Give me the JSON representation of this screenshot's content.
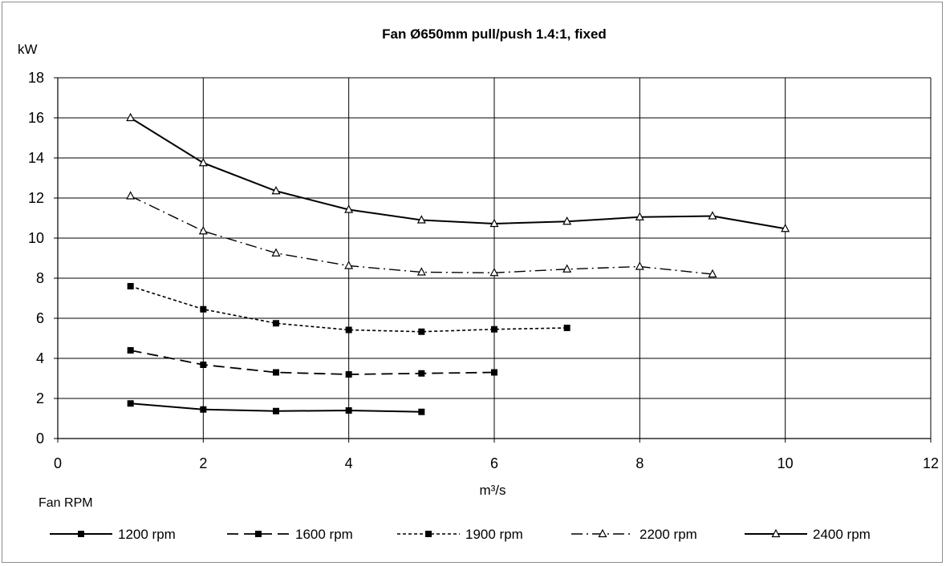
{
  "chart_data": {
    "type": "line",
    "title": "Fan Ø650mm pull/push 1.4:1, fixed",
    "xlabel": "m³/s",
    "ylabel": "kW",
    "xlim": [
      0,
      12
    ],
    "ylim": [
      0,
      18
    ],
    "xticks": [
      0,
      2,
      4,
      6,
      8,
      10,
      12
    ],
    "yticks": [
      0,
      2,
      4,
      6,
      8,
      10,
      12,
      14,
      16,
      18
    ],
    "grid": true,
    "legend_title": "Fan RPM",
    "legend_position": "bottom",
    "series": [
      {
        "name": "1200 rpm",
        "marker": "square",
        "dash": "solid",
        "x": [
          1,
          2,
          3,
          4,
          5
        ],
        "y": [
          1.75,
          1.45,
          1.37,
          1.4,
          1.33
        ]
      },
      {
        "name": "1600 rpm",
        "marker": "square",
        "dash": "long-dash",
        "x": [
          1,
          2,
          3,
          4,
          5,
          6
        ],
        "y": [
          4.4,
          3.68,
          3.3,
          3.2,
          3.25,
          3.3
        ]
      },
      {
        "name": "1900 rpm",
        "marker": "square",
        "dash": "short-dash",
        "x": [
          1,
          2,
          3,
          4,
          5,
          6,
          7
        ],
        "y": [
          7.6,
          6.45,
          5.75,
          5.42,
          5.33,
          5.45,
          5.52
        ]
      },
      {
        "name": "2200 rpm",
        "marker": "triangle",
        "dash": "dash-dot",
        "x": [
          1,
          2,
          3,
          4,
          5,
          6,
          7,
          8,
          9
        ],
        "y": [
          12.1,
          10.35,
          9.25,
          8.62,
          8.3,
          8.27,
          8.45,
          8.58,
          8.2
        ]
      },
      {
        "name": "2400 rpm",
        "marker": "triangle",
        "dash": "solid",
        "x": [
          1,
          2,
          3,
          4,
          5,
          6,
          7,
          8,
          9,
          10
        ],
        "y": [
          16.0,
          13.75,
          12.35,
          11.42,
          10.9,
          10.72,
          10.83,
          11.05,
          11.1,
          10.47
        ]
      }
    ]
  }
}
